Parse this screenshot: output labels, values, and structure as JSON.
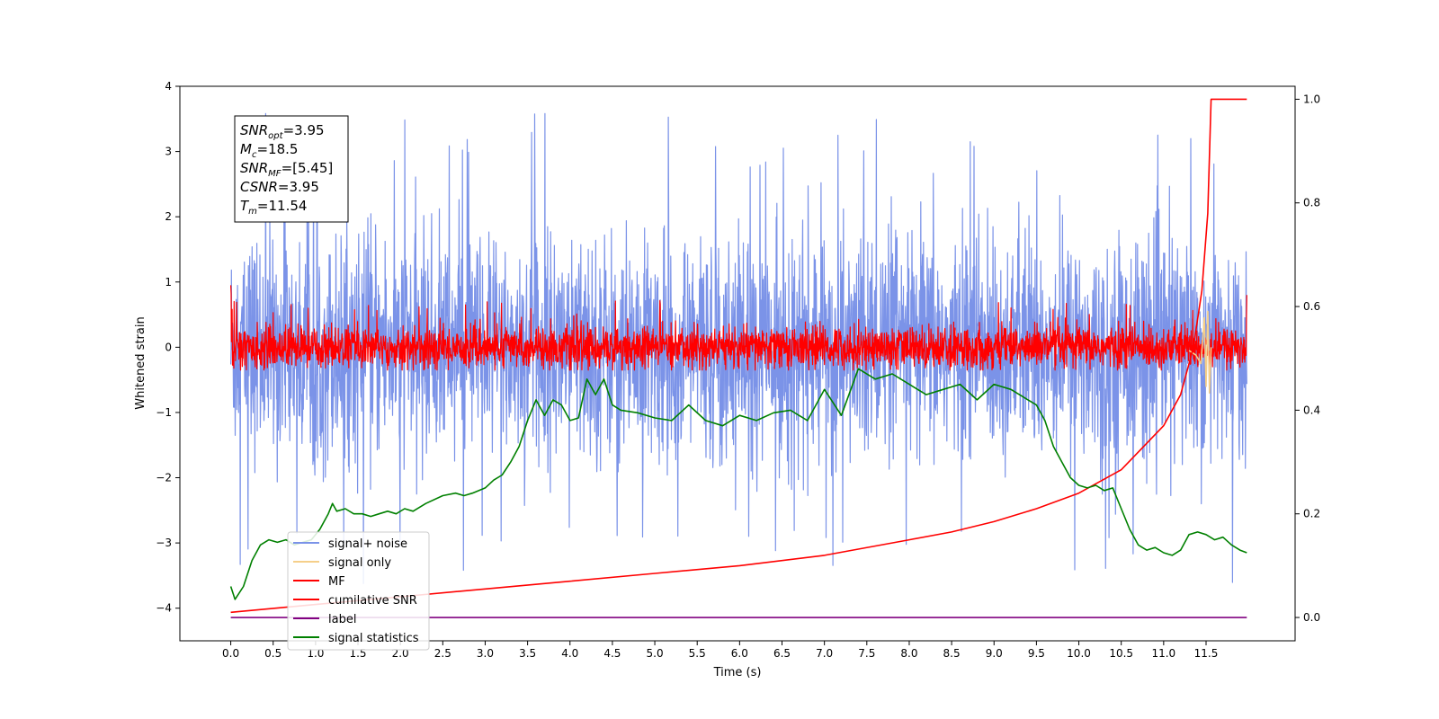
{
  "chart_data": {
    "type": "line",
    "xlabel": "Time (s)",
    "ylabel": "Whitened strain",
    "xlim": [
      -0.6,
      12.55
    ],
    "ylim": [
      -4.5,
      4.0
    ],
    "y2lim": [
      -0.045,
      1.025
    ],
    "x_ticks": [
      0.0,
      0.5,
      1.0,
      1.5,
      2.0,
      2.5,
      3.0,
      3.5,
      4.0,
      4.5,
      5.0,
      5.5,
      6.0,
      6.5,
      7.0,
      7.5,
      8.0,
      8.5,
      9.0,
      9.5,
      10.0,
      10.5,
      11.0,
      11.5
    ],
    "x_tick_labels": [
      "0.0",
      "0.5",
      "1.0",
      "1.5",
      "2.0",
      "2.5",
      "3.0",
      "3.5",
      "4.0",
      "4.5",
      "5.0",
      "5.5",
      "6.0",
      "6.5",
      "7.0",
      "7.5",
      "8.0",
      "8.5",
      "9.0",
      "9.5",
      "10.0",
      "10.5",
      "11.0",
      "11.5"
    ],
    "y_ticks": [
      4,
      3,
      2,
      1,
      0,
      -1,
      -2,
      -3,
      -4
    ],
    "y_tick_labels": [
      "4",
      "3",
      "2",
      "1",
      "0",
      "−1",
      "−2",
      "−3",
      "−4"
    ],
    "y2_ticks": [
      1.0,
      0.8,
      0.6,
      0.4,
      0.2,
      0.0
    ],
    "y2_tick_labels": [
      "1.0",
      "0.8",
      "0.6",
      "0.4",
      "0.2",
      "0.0"
    ],
    "grid": false,
    "legend_position": "lower-left",
    "annotation_box": {
      "lines": [
        {
          "base": "SNR",
          "sub": "opt",
          "rest": "=3.95"
        },
        {
          "base": "M",
          "sub": "c",
          "rest": "=18.5"
        },
        {
          "base": "SNR",
          "sub": "MF",
          "rest": "=[5.45]"
        },
        {
          "base": "CSNR",
          "sub": "",
          "rest": "=3.95"
        },
        {
          "base": "T",
          "sub": "m",
          "rest": "=11.54"
        }
      ]
    },
    "series": [
      {
        "name": "signal+ noise",
        "axis": "left",
        "color": "#7b93e8",
        "style": "noise",
        "x_range": [
          0.0,
          11.98
        ],
        "mean": 0.0,
        "std": 0.85,
        "peak_max": 3.6,
        "peak_min": -3.65
      },
      {
        "name": "signal only",
        "axis": "left",
        "color": "#f5cf8a",
        "x": [
          11.3,
          11.38,
          11.44,
          11.48,
          11.5,
          11.52,
          11.54,
          11.56
        ],
        "y": [
          -0.05,
          -0.12,
          -0.25,
          0.45,
          -0.6,
          0.55,
          -0.7,
          0.0
        ]
      },
      {
        "name": "MF",
        "axis": "left",
        "color": "#ff0000",
        "style": "noise",
        "x_range": [
          0.0,
          11.98
        ],
        "mean": 0.0,
        "std": 0.16,
        "peak_max": 0.75,
        "peak_min": -0.35,
        "edge_values": {
          "start": [
            0.95,
            0.82
          ],
          "end": [
            0.8,
            0.45
          ]
        }
      },
      {
        "name": "cumilative SNR",
        "axis": "right",
        "color": "#ff0000",
        "x": [
          0.0,
          1.0,
          2.0,
          3.0,
          4.0,
          5.0,
          6.0,
          7.0,
          8.0,
          8.5,
          9.0,
          9.5,
          10.0,
          10.5,
          11.0,
          11.2,
          11.35,
          11.45,
          11.52,
          11.56,
          11.98
        ],
        "y": [
          0.01,
          0.025,
          0.04,
          0.055,
          0.07,
          0.085,
          0.1,
          0.12,
          0.15,
          0.165,
          0.185,
          0.21,
          0.24,
          0.285,
          0.37,
          0.43,
          0.52,
          0.63,
          0.78,
          1.0,
          1.0
        ]
      },
      {
        "name": "label",
        "axis": "right",
        "color": "#800080",
        "x": [
          0.0,
          11.98
        ],
        "y": [
          0.0,
          0.0
        ]
      },
      {
        "name": "signal statistics",
        "axis": "right",
        "color": "#008000",
        "x": [
          0.0,
          0.05,
          0.15,
          0.25,
          0.35,
          0.45,
          0.55,
          0.65,
          0.75,
          0.85,
          0.95,
          1.05,
          1.15,
          1.2,
          1.25,
          1.35,
          1.45,
          1.55,
          1.65,
          1.75,
          1.85,
          1.95,
          2.05,
          2.15,
          2.3,
          2.5,
          2.65,
          2.75,
          2.85,
          3.0,
          3.1,
          3.2,
          3.3,
          3.4,
          3.5,
          3.6,
          3.7,
          3.8,
          3.9,
          4.0,
          4.1,
          4.2,
          4.3,
          4.4,
          4.5,
          4.6,
          4.8,
          5.0,
          5.2,
          5.4,
          5.6,
          5.8,
          6.0,
          6.2,
          6.4,
          6.6,
          6.8,
          7.0,
          7.2,
          7.4,
          7.6,
          7.8,
          8.0,
          8.2,
          8.4,
          8.6,
          8.8,
          9.0,
          9.2,
          9.4,
          9.5,
          9.6,
          9.7,
          9.8,
          9.9,
          10.0,
          10.1,
          10.2,
          10.3,
          10.4,
          10.5,
          10.6,
          10.7,
          10.8,
          10.9,
          11.0,
          11.1,
          11.2,
          11.3,
          11.4,
          11.5,
          11.6,
          11.7,
          11.8,
          11.9,
          11.98
        ],
        "y": [
          0.06,
          0.035,
          0.06,
          0.11,
          0.14,
          0.15,
          0.145,
          0.15,
          0.14,
          0.145,
          0.15,
          0.17,
          0.2,
          0.22,
          0.205,
          0.21,
          0.2,
          0.2,
          0.195,
          0.2,
          0.205,
          0.2,
          0.21,
          0.205,
          0.22,
          0.235,
          0.24,
          0.235,
          0.24,
          0.25,
          0.265,
          0.275,
          0.3,
          0.33,
          0.38,
          0.42,
          0.39,
          0.42,
          0.41,
          0.38,
          0.385,
          0.46,
          0.43,
          0.46,
          0.41,
          0.4,
          0.395,
          0.385,
          0.38,
          0.41,
          0.38,
          0.37,
          0.39,
          0.38,
          0.395,
          0.4,
          0.38,
          0.44,
          0.39,
          0.48,
          0.46,
          0.47,
          0.45,
          0.43,
          0.44,
          0.45,
          0.42,
          0.45,
          0.44,
          0.42,
          0.41,
          0.38,
          0.33,
          0.3,
          0.27,
          0.255,
          0.25,
          0.255,
          0.245,
          0.25,
          0.21,
          0.17,
          0.14,
          0.13,
          0.135,
          0.125,
          0.12,
          0.13,
          0.16,
          0.165,
          0.16,
          0.15,
          0.155,
          0.14,
          0.13,
          0.125
        ]
      }
    ]
  }
}
